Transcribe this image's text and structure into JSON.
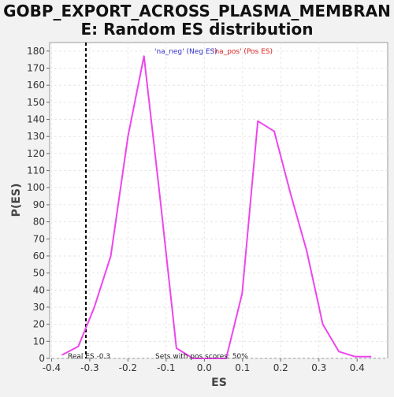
{
  "chart_data": {
    "type": "line",
    "title_line1": "GOBP_EXPORT_ACROSS_PLASMA_MEMBRAN",
    "title_line2": "E: Random ES distribution",
    "xlabel": "ES",
    "ylabel": "P(ES)",
    "xlim": [
      -0.405,
      0.48
    ],
    "ylim": [
      0,
      185
    ],
    "xticks": [
      -0.4,
      -0.3,
      -0.2,
      -0.1,
      0.0,
      0.1,
      0.2,
      0.3,
      0.4
    ],
    "xtick_labels": [
      "-0.4",
      "-0.3",
      "-0.2",
      "-0.1",
      "0.0",
      "0.1",
      "0.2",
      "0.3",
      "0.4"
    ],
    "yticks": [
      0,
      10,
      20,
      30,
      40,
      50,
      60,
      70,
      80,
      90,
      100,
      110,
      120,
      130,
      140,
      150,
      160,
      170,
      180
    ],
    "ytick_labels": [
      "0",
      "10",
      "20",
      "30",
      "40",
      "50",
      "60",
      "70",
      "80",
      "90",
      "100",
      "110",
      "120",
      "130",
      "140",
      "150",
      "160",
      "170",
      "180"
    ],
    "grid": true,
    "series": [
      {
        "color": "#ee44ee",
        "x": [
          -0.373,
          -0.33,
          -0.288,
          -0.245,
          -0.2,
          -0.158,
          -0.115,
          -0.073,
          -0.03,
          0.012,
          0.057,
          0.099,
          0.14,
          0.183,
          0.225,
          0.268,
          0.31,
          0.352,
          0.395,
          0.437
        ],
        "y": [
          2,
          7,
          30,
          60,
          130,
          177,
          92,
          6,
          0,
          0,
          0,
          38,
          139,
          133,
          97,
          63,
          20,
          4,
          1,
          1
        ]
      }
    ],
    "real_es_line": {
      "x": -0.31,
      "color": "#000000"
    },
    "legend": {
      "placement": "top",
      "neg_text": "'na_neg' (Neg ES)",
      "neg_color": "#3333cc",
      "pos_text": "'na_pos' (Pos ES)",
      "pos_color": "#dd2222"
    },
    "annotations": {
      "real_es": "Real ES -0.3",
      "sets_pos": "Sets with pos scores: 50%"
    }
  }
}
